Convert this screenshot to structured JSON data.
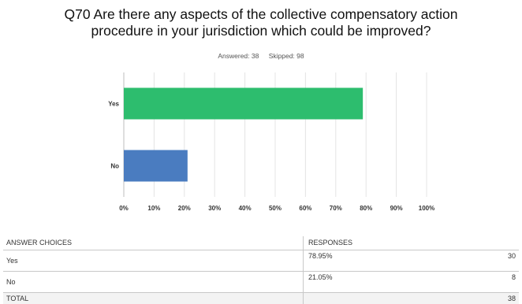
{
  "question": {
    "title_line1": "Q70 Are there any aspects of the collective compensatory action",
    "title_line2": "procedure in your jurisdiction which could be improved?",
    "answered": "Answered: 38",
    "skipped": "Skipped: 98"
  },
  "chart_data": {
    "type": "bar",
    "orientation": "horizontal",
    "categories": [
      "Yes",
      "No"
    ],
    "values": [
      78.95,
      21.05
    ],
    "colors": [
      "#2dbd6e",
      "#4a7cc0"
    ],
    "x_ticks": [
      "0%",
      "10%",
      "20%",
      "30%",
      "40%",
      "50%",
      "60%",
      "70%",
      "80%",
      "90%",
      "100%"
    ],
    "xlim": [
      0,
      100
    ],
    "grid": true
  },
  "table": {
    "headers": [
      "ANSWER CHOICES",
      "RESPONSES",
      ""
    ],
    "rows": [
      {
        "choice": "Yes",
        "percent": "78.95%",
        "count": "30"
      },
      {
        "choice": "No",
        "percent": "21.05%",
        "count": "8"
      }
    ],
    "total_label": "TOTAL",
    "total_count": "38"
  }
}
